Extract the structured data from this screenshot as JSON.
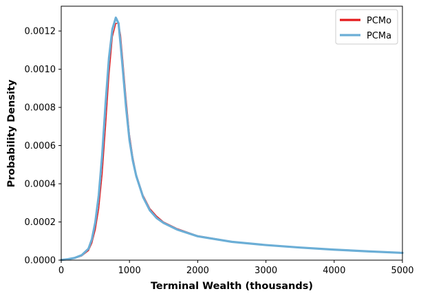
{
  "chart_data": {
    "type": "line",
    "title": "",
    "xlabel": "Terminal Wealth (thousands)",
    "ylabel": "Probability Density",
    "xlim": [
      0,
      5000
    ],
    "ylim": [
      0,
      0.00133
    ],
    "xticks": [
      0,
      1000,
      2000,
      3000,
      4000,
      5000
    ],
    "xtick_labels": [
      "0",
      "1000",
      "2000",
      "3000",
      "4000",
      "5000"
    ],
    "yticks": [
      0,
      0.0002,
      0.0004,
      0.0006,
      0.0008,
      0.001,
      0.0012
    ],
    "ytick_labels": [
      "0.0000",
      "0.0002",
      "0.0004",
      "0.0006",
      "0.0008",
      "0.0010",
      "0.0012"
    ],
    "grid": false,
    "legend_position": "top-right",
    "series": [
      {
        "name": "PCMo",
        "color": "#e41a1c",
        "x": [
          0,
          100,
          200,
          300,
          400,
          450,
          500,
          550,
          600,
          650,
          700,
          750,
          800,
          840,
          870,
          900,
          950,
          1000,
          1050,
          1100,
          1200,
          1300,
          1400,
          1500,
          1700,
          2000,
          2500,
          3000,
          3500,
          4000,
          4500,
          5000
        ],
        "y": [
          1e-06,
          4e-06,
          1e-05,
          2.2e-05,
          5e-05,
          9e-05,
          0.00016,
          0.00027,
          0.00045,
          0.0007,
          0.00097,
          0.00117,
          0.00124,
          0.00124,
          0.00118,
          0.00106,
          0.00085,
          0.00066,
          0.00054,
          0.00045,
          0.00034,
          0.00027,
          0.00023,
          0.0002,
          0.000165,
          0.000128,
          9.8e-05,
          8e-05,
          6.7e-05,
          5.6e-05,
          4.7e-05,
          3.9e-05
        ]
      },
      {
        "name": "PCMa",
        "color": "#6baed6",
        "x": [
          0,
          100,
          200,
          300,
          400,
          450,
          500,
          550,
          600,
          650,
          700,
          750,
          800,
          840,
          870,
          900,
          950,
          1000,
          1050,
          1100,
          1200,
          1300,
          1400,
          1500,
          1700,
          2000,
          2500,
          3000,
          3500,
          4000,
          4500,
          5000
        ],
        "y": [
          1e-06,
          5e-06,
          1.2e-05,
          2.6e-05,
          6e-05,
          0.00011,
          0.0002,
          0.00034,
          0.00055,
          0.00082,
          0.00106,
          0.00121,
          0.00127,
          0.00124,
          0.00113,
          0.00101,
          0.0008,
          0.00063,
          0.00052,
          0.00044,
          0.00033,
          0.00026,
          0.00022,
          0.000195,
          0.00016,
          0.000125,
          9.6e-05,
          7.9e-05,
          6.6e-05,
          5.5e-05,
          4.6e-05,
          3.8e-05
        ]
      }
    ]
  }
}
